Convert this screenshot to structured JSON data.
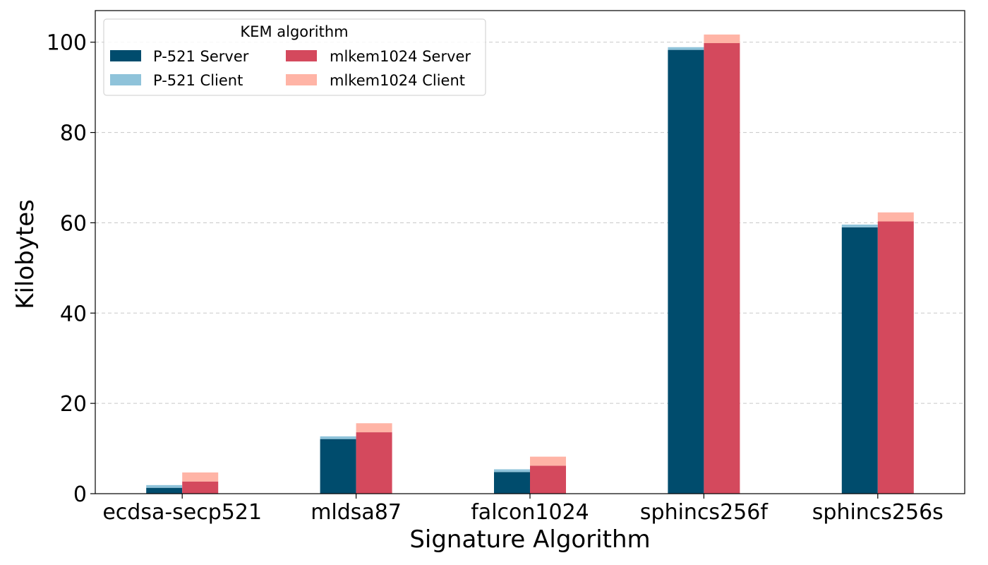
{
  "chart_data": {
    "type": "bar",
    "stacked_grouped": true,
    "xlabel": "Signature Algorithm",
    "ylabel": "Kilobytes",
    "ylim": [
      0,
      107
    ],
    "yticks": [
      0,
      20,
      40,
      60,
      80,
      100
    ],
    "grid": "horizontal-dashed",
    "categories": [
      "ecdsa-secp521",
      "mldsa87",
      "falcon1024",
      "sphincs256f",
      "sphincs256s"
    ],
    "legend": {
      "title": "KEM algorithm",
      "placement": "top-left",
      "columns": 2,
      "entries": [
        "P-521 Server",
        "P-521 Client",
        "mlkem1024 Server",
        "mlkem1024 Client"
      ]
    },
    "groups": [
      {
        "name": "P-521",
        "server": {
          "name": "P-521 Server",
          "color": "#004c6d",
          "values": [
            1.3,
            12.1,
            4.8,
            98.3,
            59.0
          ]
        },
        "client": {
          "name": "P-521 Client",
          "color": "#8fc3da",
          "values": [
            0.6,
            0.6,
            0.6,
            0.6,
            0.6
          ]
        }
      },
      {
        "name": "mlkem1024",
        "server": {
          "name": "mlkem1024 Server",
          "color": "#d4495d",
          "values": [
            2.7,
            13.6,
            6.2,
            99.8,
            60.3
          ]
        },
        "client": {
          "name": "mlkem1024 Client",
          "color": "#ffb4a6",
          "values": [
            2.0,
            2.0,
            2.0,
            1.9,
            2.0
          ]
        }
      }
    ]
  }
}
